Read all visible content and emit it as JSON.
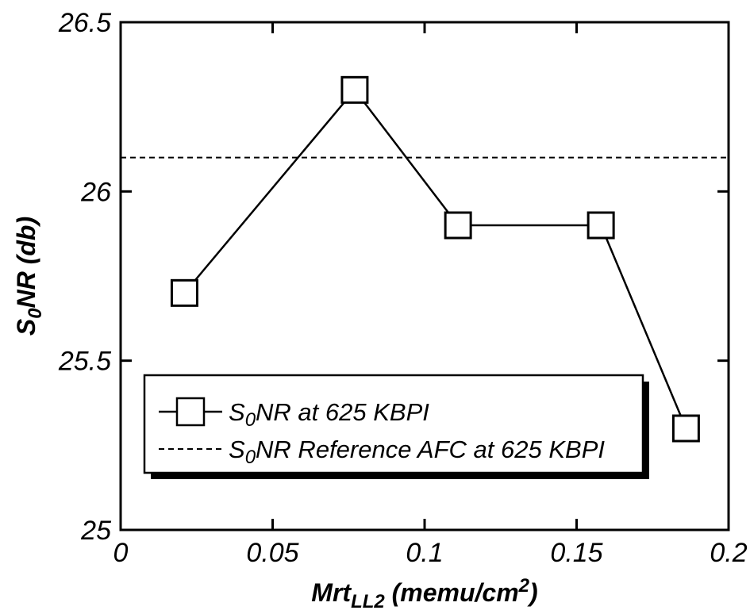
{
  "chart_data": {
    "type": "line",
    "xlabel": {
      "main": "Mrt",
      "sub": "LL2",
      "unit": " (memu/cm",
      "sup": "2",
      "close": ")"
    },
    "ylabel": {
      "pre": "S",
      "sub": "0",
      "post": "NR (db)"
    },
    "xlim": [
      0,
      0.2
    ],
    "ylim": [
      25,
      26.5
    ],
    "xticks": [
      0,
      0.05,
      0.1,
      0.15,
      0.2
    ],
    "xtick_labels": [
      "0",
      "0.05",
      "0.1",
      "0.15",
      "0.2"
    ],
    "yticks": [
      25,
      25.5,
      26,
      26.5
    ],
    "ytick_labels": [
      "25",
      "25.5",
      "26",
      "26.5"
    ],
    "series": [
      {
        "marker": "square",
        "x": [
          0.021,
          0.077,
          0.111,
          0.158,
          0.186
        ],
        "y": [
          25.7,
          26.3,
          25.9,
          25.9,
          25.3
        ]
      }
    ],
    "reference_line": {
      "y": 26.1,
      "style": "dashed"
    },
    "legend": {
      "placement": "lower-left",
      "entries": [
        {
          "pre": "S",
          "sub": "0",
          "post": "NR at 625 KBPI",
          "style": "line-square"
        },
        {
          "pre": "S",
          "sub": "0",
          "post": "NR Reference AFC at 625 KBPI",
          "style": "dashed"
        }
      ]
    },
    "grid": false
  }
}
